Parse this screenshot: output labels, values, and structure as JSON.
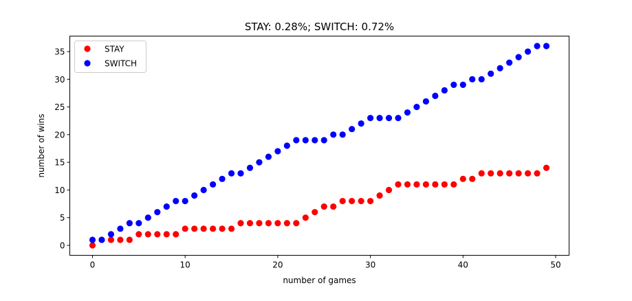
{
  "chart_data": {
    "type": "scatter",
    "title": "STAY: 0.28%; SWITCH: 0.72%",
    "xlabel": "number of games",
    "ylabel": "number of wins",
    "xlim": [
      -2.45,
      51.45
    ],
    "ylim": [
      -1.8,
      37.8
    ],
    "xticks": [
      0,
      10,
      20,
      30,
      40,
      50
    ],
    "yticks": [
      0,
      5,
      10,
      15,
      20,
      25,
      30,
      35
    ],
    "grid": false,
    "legend_position": "top-left",
    "x": [
      0,
      1,
      2,
      3,
      4,
      5,
      6,
      7,
      8,
      9,
      10,
      11,
      12,
      13,
      14,
      15,
      16,
      17,
      18,
      19,
      20,
      21,
      22,
      23,
      24,
      25,
      26,
      27,
      28,
      29,
      30,
      31,
      32,
      33,
      34,
      35,
      36,
      37,
      38,
      39,
      40,
      41,
      42,
      43,
      44,
      45,
      46,
      47,
      48,
      49
    ],
    "series": [
      {
        "name": "STAY",
        "color": "#ff0000",
        "values": [
          0,
          1,
          1,
          1,
          1,
          2,
          2,
          2,
          2,
          2,
          3,
          3,
          3,
          3,
          3,
          3,
          4,
          4,
          4,
          4,
          4,
          4,
          4,
          5,
          6,
          7,
          7,
          8,
          8,
          8,
          8,
          9,
          10,
          11,
          11,
          11,
          11,
          11,
          11,
          11,
          12,
          12,
          13,
          13,
          13,
          13,
          13,
          13,
          13,
          14
        ]
      },
      {
        "name": "SWITCH",
        "color": "#0000ff",
        "values": [
          1,
          1,
          2,
          3,
          4,
          4,
          5,
          6,
          7,
          8,
          8,
          9,
          10,
          11,
          12,
          13,
          13,
          14,
          15,
          16,
          17,
          18,
          19,
          19,
          19,
          19,
          20,
          20,
          21,
          22,
          23,
          23,
          23,
          23,
          24,
          25,
          26,
          27,
          28,
          29,
          29,
          30,
          30,
          31,
          32,
          33,
          34,
          35,
          36,
          36
        ]
      }
    ]
  }
}
